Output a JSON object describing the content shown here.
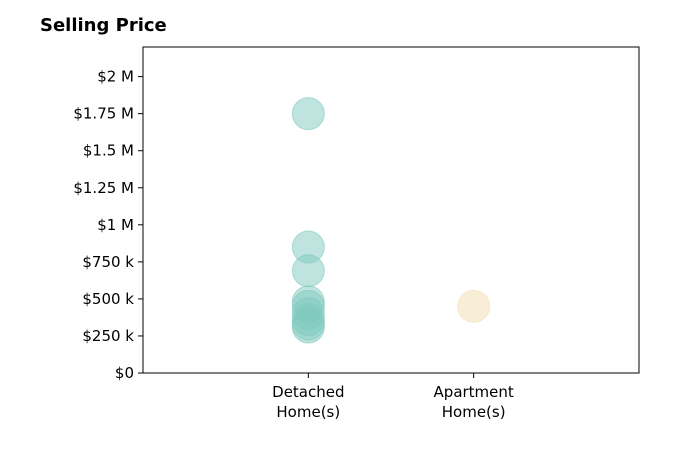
{
  "chart_data": {
    "type": "scatter",
    "title": "Selling Price",
    "categories": [
      "Detached\nHome(s)",
      "Apartment\nHome(s)"
    ],
    "y_ticks": [
      {
        "value": 0,
        "label": "$0"
      },
      {
        "value": 250000,
        "label": "$250 k"
      },
      {
        "value": 500000,
        "label": "$500 k"
      },
      {
        "value": 750000,
        "label": "$750 k"
      },
      {
        "value": 1000000,
        "label": "$1 M"
      },
      {
        "value": 1250000,
        "label": "$1.25 M"
      },
      {
        "value": 1500000,
        "label": "$1.5 M"
      },
      {
        "value": 1750000,
        "label": "$1.75 M"
      },
      {
        "value": 2000000,
        "label": "$2 M"
      }
    ],
    "ylim": [
      0,
      2200000
    ],
    "series": [
      {
        "category": "Detached\nHome(s)",
        "color": "#7fc9c0",
        "values": [
          1750000,
          850000,
          690000,
          480000,
          450000,
          400000,
          360000,
          330000,
          310000
        ]
      },
      {
        "category": "Apartment\nHome(s)",
        "color": "#f2deb1",
        "values": [
          450000
        ]
      }
    ],
    "grid": false,
    "legend": "none"
  }
}
